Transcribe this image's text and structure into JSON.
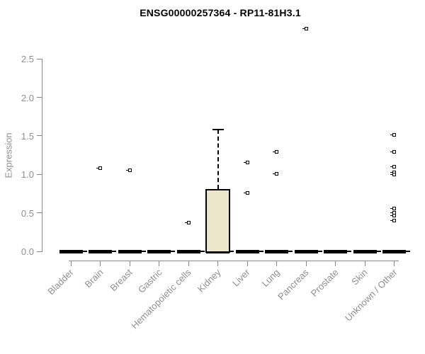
{
  "chart_data": {
    "type": "boxplot",
    "title": "ENSG00000257364 - RP11-81H3.1",
    "ylabel": "Expression",
    "xlabel": "",
    "ylim": [
      0.0,
      2.5
    ],
    "yticks": [
      "0.0",
      "0.5",
      "1.0",
      "1.5",
      "2.0",
      "2.5"
    ],
    "ytick_values": [
      0.0,
      0.5,
      1.0,
      1.5,
      2.0,
      2.5
    ],
    "grid": false,
    "legend": "none",
    "box_fill_color": "#ECE7CC",
    "box_border_color": "#000000",
    "axis_color": "#888888",
    "label_color": "#8f8f8f",
    "categories": [
      "Bladder",
      "Brain",
      "Breast",
      "Gastric",
      "Hematopoietic cells",
      "Kidney",
      "Liver",
      "Lung",
      "Pancreas",
      "Prostate",
      "Skin",
      "Unknown / Other"
    ],
    "groups": [
      {
        "label": "Bladder",
        "box": {
          "whisker_low": 0,
          "q1": 0,
          "median": 0,
          "q3": 0,
          "whisker_high": 0
        },
        "outliers": []
      },
      {
        "label": "Brain",
        "box": {
          "whisker_low": 0,
          "q1": 0,
          "median": 0,
          "q3": 0,
          "whisker_high": 0
        },
        "outliers": [
          1.08
        ]
      },
      {
        "label": "Breast",
        "box": {
          "whisker_low": 0,
          "q1": 0,
          "median": 0,
          "q3": 0,
          "whisker_high": 0
        },
        "outliers": [
          1.05
        ]
      },
      {
        "label": "Gastric",
        "box": {
          "whisker_low": 0,
          "q1": 0,
          "median": 0,
          "q3": 0,
          "whisker_high": 0
        },
        "outliers": []
      },
      {
        "label": "Hematopoietic cells",
        "box": {
          "whisker_low": 0,
          "q1": 0,
          "median": 0,
          "q3": 0,
          "whisker_high": 0
        },
        "outliers": [
          0.37
        ]
      },
      {
        "label": "Kidney",
        "box": {
          "whisker_low": 0,
          "q1": 0,
          "median": 0,
          "q3": 0.81,
          "whisker_high": 1.58
        },
        "outliers": []
      },
      {
        "label": "Liver",
        "box": {
          "whisker_low": 0,
          "q1": 0,
          "median": 0,
          "q3": 0,
          "whisker_high": 0
        },
        "outliers": [
          1.15,
          0.76
        ]
      },
      {
        "label": "Lung",
        "box": {
          "whisker_low": 0,
          "q1": 0,
          "median": 0,
          "q3": 0,
          "whisker_high": 0
        },
        "outliers": [
          1.29,
          1.01
        ]
      },
      {
        "label": "Pancreas",
        "box": {
          "whisker_low": 0,
          "q1": 0,
          "median": 0,
          "q3": 0,
          "whisker_high": 0
        },
        "outliers": [
          2.89
        ]
      },
      {
        "label": "Prostate",
        "box": {
          "whisker_low": 0,
          "q1": 0,
          "median": 0,
          "q3": 0,
          "whisker_high": 0
        },
        "outliers": []
      },
      {
        "label": "Skin",
        "box": {
          "whisker_low": 0,
          "q1": 0,
          "median": 0,
          "q3": 0,
          "whisker_high": 0
        },
        "outliers": []
      },
      {
        "label": "Unknown / Other",
        "box": {
          "whisker_low": 0,
          "q1": 0,
          "median": 0,
          "q3": 0,
          "whisker_high": 0
        },
        "outliers": [
          1.51,
          1.29,
          1.1,
          1.03,
          1.0,
          0.56,
          0.5,
          0.46,
          0.4
        ]
      }
    ]
  }
}
